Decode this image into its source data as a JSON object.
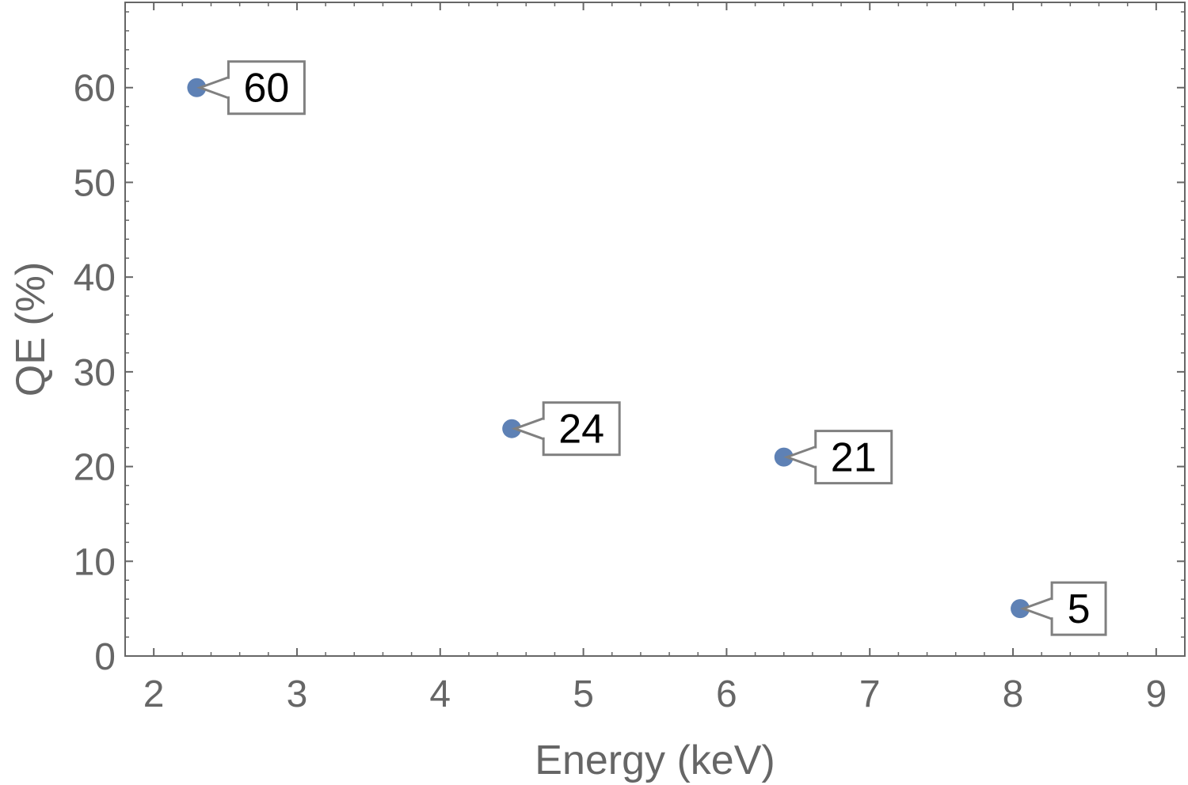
{
  "chart_data": {
    "type": "scatter",
    "title": "",
    "xlabel": "Energy (keV)",
    "ylabel": "QE (%)",
    "xlim": [
      1.8,
      9.2
    ],
    "ylim": [
      0,
      69
    ],
    "x_ticks": [
      2,
      3,
      4,
      5,
      6,
      7,
      8,
      9
    ],
    "y_ticks": [
      0,
      10,
      20,
      30,
      40,
      50,
      60
    ],
    "grid": false,
    "legend": "none",
    "point_color": "#5e81b5",
    "axis_color": "#666666",
    "series": [
      {
        "x": [
          2.3,
          4.5,
          6.4,
          8.05
        ],
        "y": [
          60,
          24,
          21,
          5
        ],
        "labels": [
          "60",
          "24",
          "21",
          "5"
        ]
      }
    ]
  }
}
